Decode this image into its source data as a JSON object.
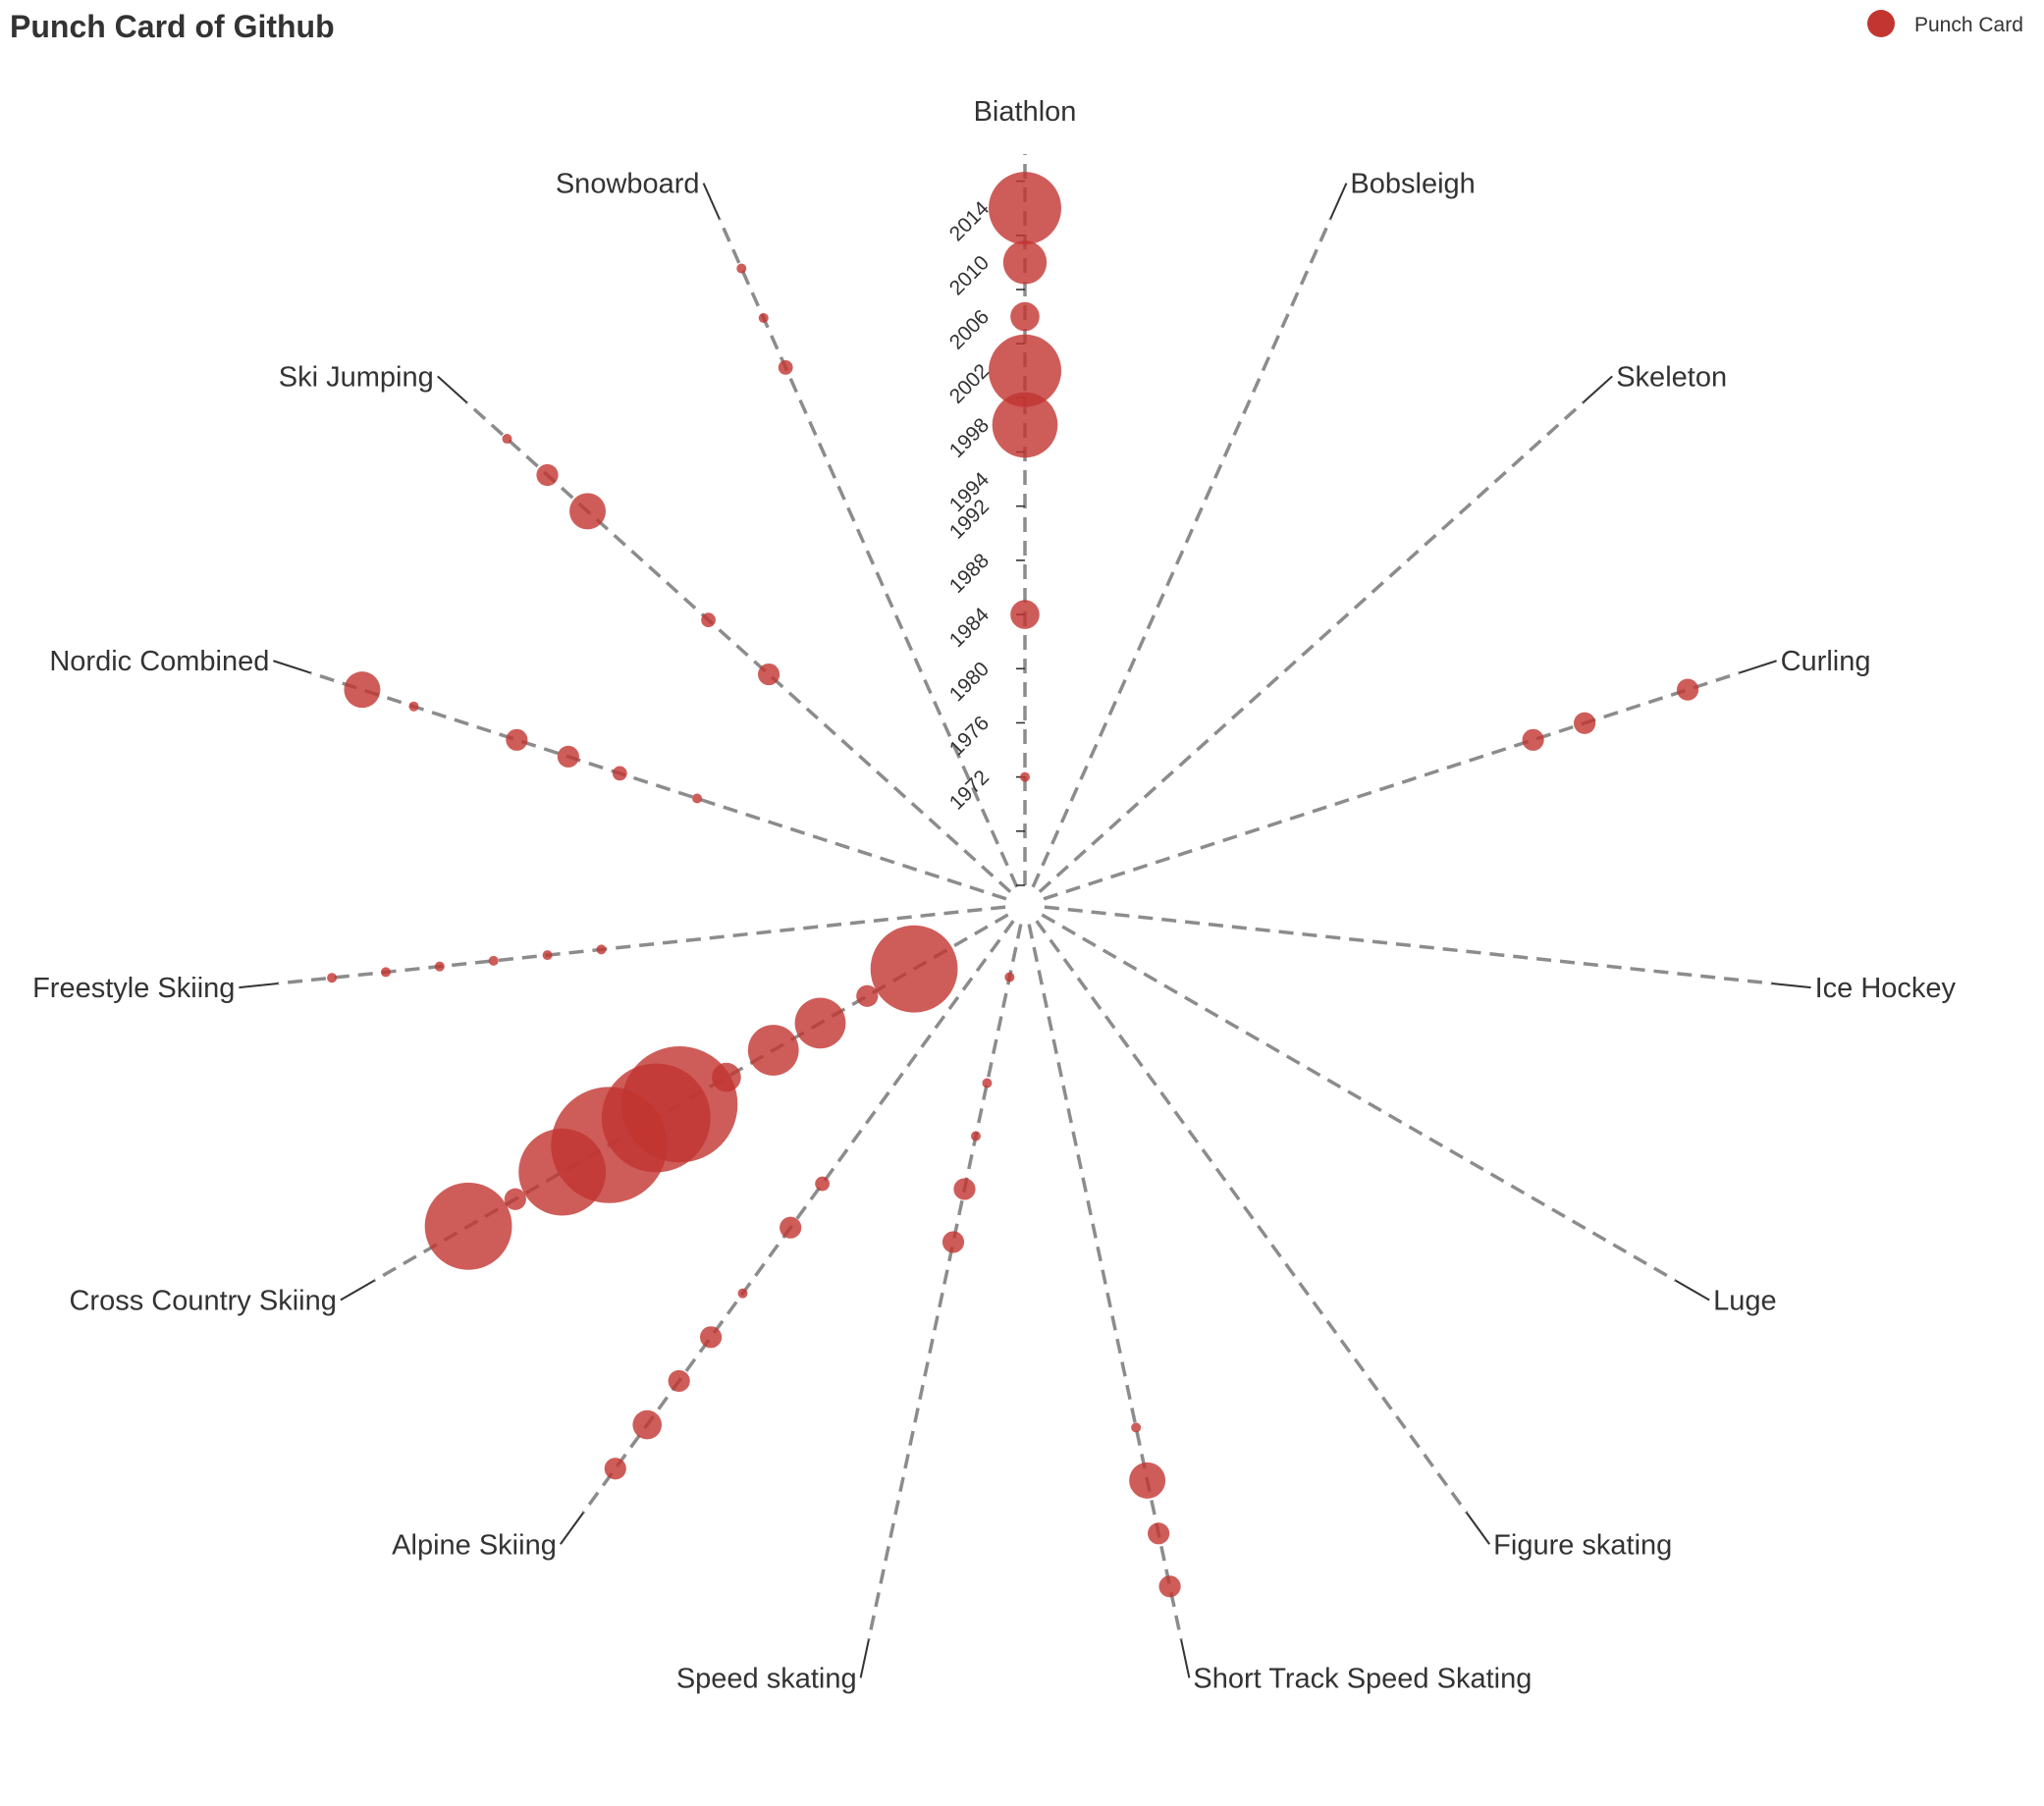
{
  "chart_data": {
    "type": "scatter",
    "subtype": "polar-punch-card",
    "title": "Punch Card of Github",
    "legend": {
      "position": "top-right",
      "entries": [
        "Punch Card"
      ]
    },
    "series": [
      {
        "name": "Punch Card",
        "color": "#c23531"
      }
    ],
    "categories": [
      "Biathlon",
      "Bobsleigh",
      "Skeleton",
      "Curling",
      "Ice Hockey",
      "Luge",
      "Figure skating",
      "Short Track Speed Skating",
      "Speed skating",
      "Alpine Skiing",
      "Cross Country Skiing",
      "Freestyle Skiing",
      "Nordic Combined",
      "Ski Jumping",
      "Snowboard"
    ],
    "radial_axis": {
      "tick_labels": [
        "1972",
        "1976",
        "1980",
        "1984",
        "1988",
        "1992",
        "1994",
        "1998",
        "2002",
        "2006",
        "2010",
        "2014"
      ],
      "range": [
        1964,
        2018
      ]
    },
    "points": [
      {
        "category": "Biathlon",
        "year": 2014,
        "value": 10
      },
      {
        "category": "Biathlon",
        "year": 2010,
        "value": 6
      },
      {
        "category": "Biathlon",
        "year": 2006,
        "value": 4
      },
      {
        "category": "Biathlon",
        "year": 2002,
        "value": 10
      },
      {
        "category": "Biathlon",
        "year": 1998,
        "value": 9
      },
      {
        "category": "Biathlon",
        "year": 1984,
        "value": 4
      },
      {
        "category": "Biathlon",
        "year": 1972,
        "value": 1
      },
      {
        "category": "Curling",
        "year": 2014,
        "value": 3
      },
      {
        "category": "Curling",
        "year": 2006,
        "value": 3
      },
      {
        "category": "Curling",
        "year": 2002,
        "value": 3
      },
      {
        "category": "Short Track Speed Skating",
        "year": 2014,
        "value": 3
      },
      {
        "category": "Short Track Speed Skating",
        "year": 2010,
        "value": 3
      },
      {
        "category": "Short Track Speed Skating",
        "year": 2006,
        "value": 5
      },
      {
        "category": "Short Track Speed Skating",
        "year": 2002,
        "value": 1
      },
      {
        "category": "Speed skating",
        "year": 1988,
        "value": 3
      },
      {
        "category": "Speed skating",
        "year": 1984,
        "value": 3
      },
      {
        "category": "Speed skating",
        "year": 1980,
        "value": 1
      },
      {
        "category": "Speed skating",
        "year": 1976,
        "value": 1
      },
      {
        "category": "Speed skating",
        "year": 1968,
        "value": 1
      },
      {
        "category": "Alpine Skiing",
        "year": 2014,
        "value": 3
      },
      {
        "category": "Alpine Skiing",
        "year": 2010,
        "value": 4
      },
      {
        "category": "Alpine Skiing",
        "year": 2006,
        "value": 3
      },
      {
        "category": "Alpine Skiing",
        "year": 2002,
        "value": 3
      },
      {
        "category": "Alpine Skiing",
        "year": 1998,
        "value": 1
      },
      {
        "category": "Alpine Skiing",
        "year": 1992,
        "value": 3
      },
      {
        "category": "Alpine Skiing",
        "year": 1988,
        "value": 2
      },
      {
        "category": "Cross Country Skiing",
        "year": 1972,
        "value": 12
      },
      {
        "category": "Cross Country Skiing",
        "year": 1976,
        "value": 3
      },
      {
        "category": "Cross Country Skiing",
        "year": 1980,
        "value": 7
      },
      {
        "category": "Cross Country Skiing",
        "year": 1984,
        "value": 7
      },
      {
        "category": "Cross Country Skiing",
        "year": 1988,
        "value": 4
      },
      {
        "category": "Cross Country Skiing",
        "year": 1992,
        "value": 16
      },
      {
        "category": "Cross Country Skiing",
        "year": 1994,
        "value": 15
      },
      {
        "category": "Cross Country Skiing",
        "year": 1998,
        "value": 16
      },
      {
        "category": "Cross Country Skiing",
        "year": 2002,
        "value": 12
      },
      {
        "category": "Cross Country Skiing",
        "year": 2006,
        "value": 3
      },
      {
        "category": "Cross Country Skiing",
        "year": 2010,
        "value": 12
      },
      {
        "category": "Freestyle Skiing",
        "year": 2014,
        "value": 1
      },
      {
        "category": "Freestyle Skiing",
        "year": 2010,
        "value": 1
      },
      {
        "category": "Freestyle Skiing",
        "year": 2006,
        "value": 1
      },
      {
        "category": "Freestyle Skiing",
        "year": 2002,
        "value": 1
      },
      {
        "category": "Freestyle Skiing",
        "year": 1998,
        "value": 1
      },
      {
        "category": "Freestyle Skiing",
        "year": 1994,
        "value": 1
      },
      {
        "category": "Nordic Combined",
        "year": 2014,
        "value": 5
      },
      {
        "category": "Nordic Combined",
        "year": 2010,
        "value": 1
      },
      {
        "category": "Nordic Combined",
        "year": 2002,
        "value": 3
      },
      {
        "category": "Nordic Combined",
        "year": 1998,
        "value": 3
      },
      {
        "category": "Nordic Combined",
        "year": 1994,
        "value": 2
      },
      {
        "category": "Nordic Combined",
        "year": 1988,
        "value": 1
      },
      {
        "category": "Ski Jumping",
        "year": 2014,
        "value": 1
      },
      {
        "category": "Ski Jumping",
        "year": 2010,
        "value": 3
      },
      {
        "category": "Ski Jumping",
        "year": 2006,
        "value": 5
      },
      {
        "category": "Ski Jumping",
        "year": 1994,
        "value": 2
      },
      {
        "category": "Ski Jumping",
        "year": 1988,
        "value": 3
      },
      {
        "category": "Snowboard",
        "year": 2014,
        "value": 1
      },
      {
        "category": "Snowboard",
        "year": 2010,
        "value": 1
      },
      {
        "category": "Snowboard",
        "year": 2006,
        "value": 2
      }
    ]
  }
}
